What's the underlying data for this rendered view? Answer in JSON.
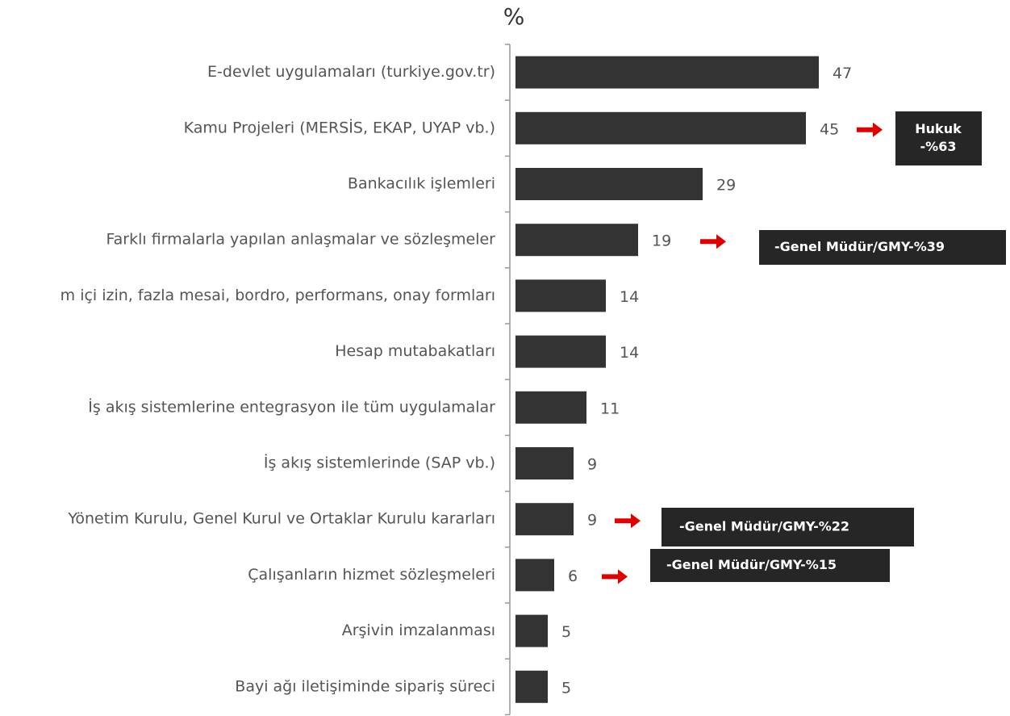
{
  "chart_data": {
    "type": "bar",
    "orientation": "horizontal",
    "title": "%",
    "categories": [
      "E-devlet uygulamaları (turkiye.gov.tr)",
      "Kamu Projeleri (MERSİS, EKAP, UYAP vb.)",
      "Bankacılık işlemleri",
      "Farklı firmalarla yapılan anlaşmalar ve sözleşmeler",
      "m içi izin, fazla mesai, bordro, performans, onay formları",
      "Hesap mutabakatları",
      "İş akış sistemlerine entegrasyon ile tüm uygulamalar",
      "İş akış sistemlerinde (SAP vb.)",
      "Yönetim Kurulu, Genel Kurul ve Ortaklar Kurulu kararları",
      "Çalışanların hizmet sözleşmeleri",
      "Arşivin imzalanması",
      "Bayi ağı iletişiminde sipariş süreci"
    ],
    "values": [
      47,
      45,
      29,
      19,
      14,
      14,
      11,
      9,
      9,
      6,
      5,
      5
    ],
    "color": "#333333",
    "xlim": [
      0,
      50
    ],
    "annotations": [
      {
        "lines": [
          "Hukuk",
          "-%63"
        ]
      },
      {
        "lines": [
          "-Genel Müdür/GMY-%39"
        ]
      },
      {
        "lines": [
          "-Genel Müdür/GMY-%22"
        ]
      },
      {
        "lines": [
          "-Genel Müdür/GMY-%15"
        ]
      }
    ]
  }
}
